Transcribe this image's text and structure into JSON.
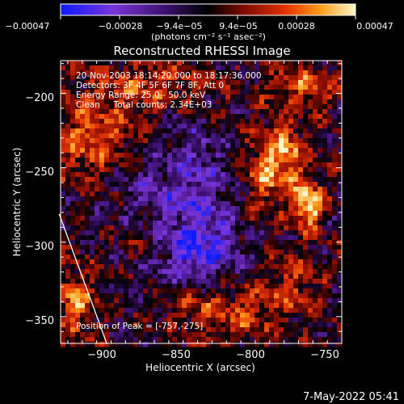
{
  "chart_data": {
    "type": "heatmap",
    "title": "Reconstructed RHESSI Image",
    "xlabel": "Heliocentric X (arcsec)",
    "ylabel": "Heliocentric Y (arcsec)",
    "xlim": [
      -930,
      -735
    ],
    "ylim": [
      -368,
      -178
    ],
    "x_ticks": [
      -900,
      -850,
      -800,
      -750
    ],
    "x_tick_labels": [
      "−900",
      "−850",
      "−800",
      "−750"
    ],
    "y_ticks": [
      -200,
      -250,
      -300,
      -350
    ],
    "y_tick_labels": [
      "−200",
      "−250",
      "−300",
      "−350"
    ],
    "colorbar": {
      "min": -0.00047,
      "max": 0.00047,
      "tick_labels": [
        "−0.00047",
        "−0.00028",
        "−9.4e−05",
        "9.4e−05",
        "0.00028",
        "0.00047"
      ],
      "unit_label": "(photons cm⁻² s⁻¹ asec⁻²)",
      "colors": [
        "#0a1bff",
        "#7a35d8",
        "#3a0f6a",
        "#000000",
        "#7d0a00",
        "#e23200",
        "#ff9a1a",
        "#fff9c8"
      ]
    },
    "annotations": [
      "20-Nov-2003 18:14:20.000 to 18:17:36.000",
      "Detectors: 3F 4F 5F 6F 7F 8F, Att 0",
      "Energy Range: 25.0 - 50.0 keV",
      "Clean     Total counts: 2.34E+03"
    ],
    "peak_label": "Position of Peak = [-757,-275]",
    "peak": {
      "x": -757,
      "y": -275
    },
    "limb_line": [
      [
        -931,
        -281
      ],
      [
        -898,
        -368
      ]
    ],
    "bright_regions": [
      {
        "x": -758,
        "y": -275,
        "sx": 7,
        "sy": 10,
        "amp": 1.05
      },
      {
        "x": -773,
        "y": -242,
        "sx": 8,
        "sy": 15,
        "amp": 0.75
      },
      {
        "x": -790,
        "y": -255,
        "sx": 10,
        "sy": 20,
        "amp": 0.55
      },
      {
        "x": -905,
        "y": -230,
        "sx": 25,
        "sy": 20,
        "amp": 0.55
      },
      {
        "x": -860,
        "y": -195,
        "sx": 30,
        "sy": 12,
        "amp": 0.45
      },
      {
        "x": -920,
        "y": -340,
        "sx": 10,
        "sy": 15,
        "amp": 0.6
      },
      {
        "x": -870,
        "y": -295,
        "sx": 15,
        "sy": 15,
        "amp": 0.35
      },
      {
        "x": -810,
        "y": -345,
        "sx": 20,
        "sy": 15,
        "amp": 0.45
      },
      {
        "x": -760,
        "y": -195,
        "sx": 15,
        "sy": 10,
        "amp": 0.5
      },
      {
        "x": -770,
        "y": -330,
        "sx": 12,
        "sy": 15,
        "amp": 0.4
      },
      {
        "x": -840,
        "y": -340,
        "sx": 15,
        "sy": 12,
        "amp": 0.4
      }
    ],
    "dark_regions": [
      {
        "x": -840,
        "y": -270,
        "sx": 20,
        "sy": 40,
        "amp": 0.55
      },
      {
        "x": -835,
        "y": -310,
        "sx": 25,
        "sy": 20,
        "amp": 0.45
      },
      {
        "x": -880,
        "y": -265,
        "sx": 15,
        "sy": 25,
        "amp": 0.3
      }
    ]
  },
  "footer": {
    "timestamp": "7-May-2022 05:41"
  }
}
